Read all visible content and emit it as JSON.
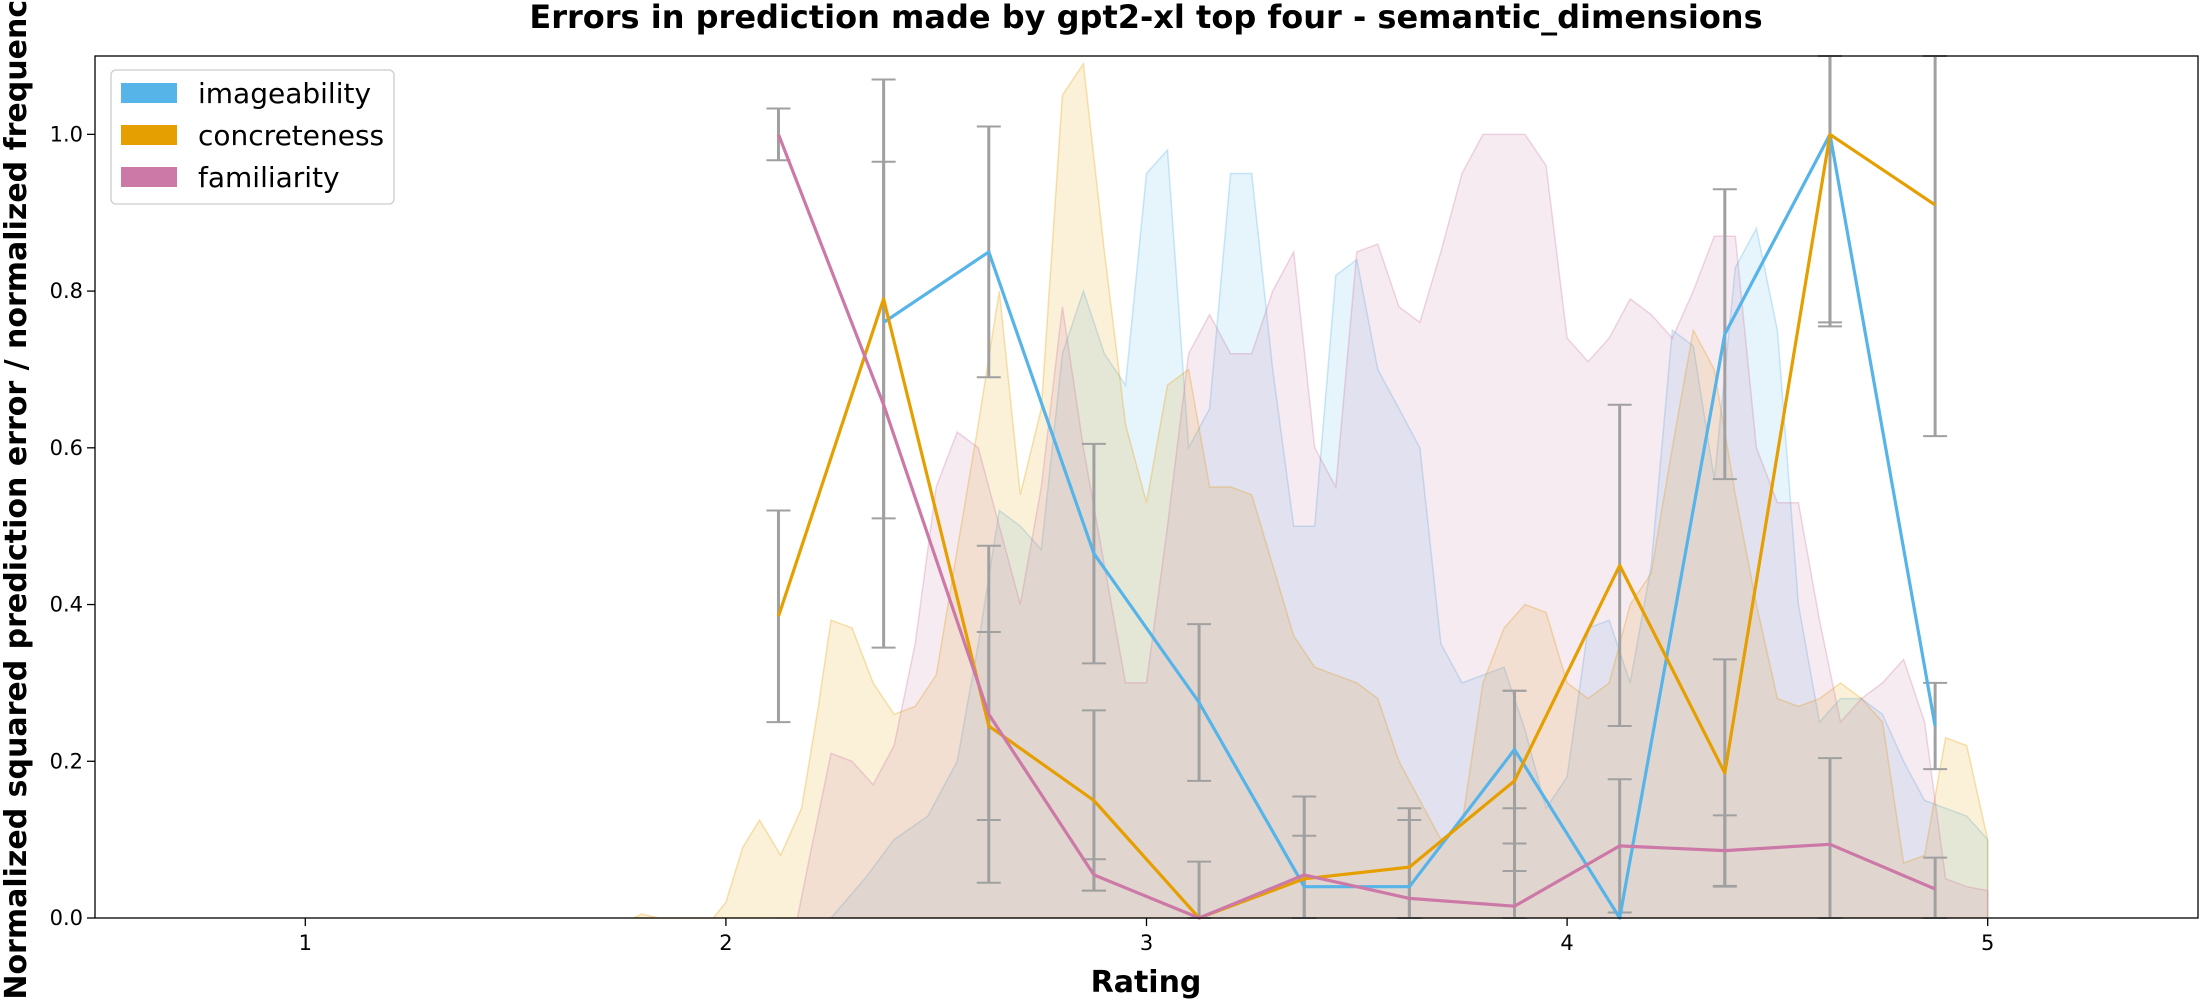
{
  "chart_data": {
    "type": "line",
    "title": "Errors in prediction made by gpt2-xl top four - semantic_dimensions",
    "xlabel": "Rating",
    "ylabel": "Normalized squared prediction error / normalized frequency",
    "xlim": [
      0.5,
      5.5
    ],
    "ylim": [
      0.0,
      1.1
    ],
    "xticks": [
      "1",
      "2",
      "3",
      "4",
      "5"
    ],
    "yticks": [
      "0.0",
      "0.2",
      "0.4",
      "0.6",
      "0.8",
      "1.0"
    ],
    "grid": false,
    "legend_position": "top-left",
    "colors": {
      "imageability": "#56b4e9",
      "concreteness": "#e69f00",
      "familiarity": "#cc79a7",
      "errorbar": "#a0a0a0"
    },
    "series": [
      {
        "name": "imageability",
        "x": [
          2.375,
          2.625,
          2.875,
          3.125,
          3.375,
          3.625,
          3.875,
          4.125,
          4.375,
          4.625,
          4.875
        ],
        "y": [
          0.76,
          0.85,
          0.465,
          0.275,
          0.04,
          0.04,
          0.215,
          0.0,
          0.745,
          1.0,
          0.245
        ],
        "err": [
          0.0,
          0.16,
          0.14,
          0.1,
          0.0,
          0.0,
          0.075,
          0.0,
          0.185,
          0.24,
          0.055
        ]
      },
      {
        "name": "concreteness",
        "x": [
          2.125,
          2.375,
          2.625,
          2.875,
          3.125,
          3.375,
          3.625,
          3.875,
          4.125,
          4.375,
          4.625,
          4.875
        ],
        "y": [
          0.385,
          0.79,
          0.245,
          0.15,
          0.0,
          0.05,
          0.065,
          0.175,
          0.45,
          0.185,
          1.0,
          0.91
        ],
        "err": [
          0.135,
          0.28,
          0.12,
          0.115,
          0.0,
          0.055,
          0.075,
          0.115,
          0.205,
          0.145,
          0.245,
          0.295
        ]
      },
      {
        "name": "familiarity",
        "x": [
          2.125,
          2.375,
          2.625,
          2.875,
          3.125,
          3.375,
          3.625,
          3.875,
          4.125,
          4.375,
          4.625,
          4.875
        ],
        "y": [
          1.0,
          0.655,
          0.26,
          0.055,
          0.0,
          0.055,
          0.025,
          0.015,
          0.092,
          0.086,
          0.094,
          0.037
        ],
        "err": [
          0.033,
          0.31,
          0.215,
          0.02,
          0.072,
          0.1,
          0.1,
          0.08,
          0.085,
          0.045,
          0.11,
          0.04
        ]
      }
    ],
    "density": [
      {
        "name": "imageability",
        "x": [
          2.25,
          2.33,
          2.4,
          2.48,
          2.55,
          2.6,
          2.65,
          2.7,
          2.75,
          2.8,
          2.85,
          2.9,
          2.95,
          3.0,
          3.05,
          3.1,
          3.15,
          3.2,
          3.25,
          3.3,
          3.35,
          3.4,
          3.45,
          3.5,
          3.55,
          3.6,
          3.65,
          3.7,
          3.75,
          3.8,
          3.85,
          3.9,
          3.95,
          4.0,
          4.05,
          4.1,
          4.15,
          4.2,
          4.25,
          4.3,
          4.35,
          4.4,
          4.45,
          4.5,
          4.55,
          4.6,
          4.65,
          4.7,
          4.75,
          4.8,
          4.85,
          4.9,
          4.95,
          5.0
        ],
        "y": [
          0.0,
          0.05,
          0.1,
          0.13,
          0.2,
          0.35,
          0.52,
          0.5,
          0.47,
          0.72,
          0.8,
          0.72,
          0.68,
          0.95,
          0.98,
          0.6,
          0.65,
          0.95,
          0.95,
          0.7,
          0.5,
          0.5,
          0.82,
          0.84,
          0.7,
          0.65,
          0.6,
          0.35,
          0.3,
          0.31,
          0.32,
          0.24,
          0.14,
          0.18,
          0.37,
          0.38,
          0.3,
          0.45,
          0.75,
          0.73,
          0.56,
          0.83,
          0.88,
          0.75,
          0.4,
          0.25,
          0.28,
          0.28,
          0.26,
          0.2,
          0.15,
          0.14,
          0.13,
          0.1
        ]
      },
      {
        "name": "concreteness",
        "x": [
          1.78,
          1.8,
          1.84,
          1.9,
          1.97,
          2.0,
          2.04,
          2.08,
          2.13,
          2.18,
          2.22,
          2.25,
          2.3,
          2.35,
          2.4,
          2.45,
          2.5,
          2.55,
          2.6,
          2.65,
          2.7,
          2.75,
          2.8,
          2.85,
          2.9,
          2.95,
          3.0,
          3.05,
          3.1,
          3.15,
          3.2,
          3.25,
          3.3,
          3.35,
          3.4,
          3.45,
          3.5,
          3.55,
          3.6,
          3.65,
          3.7,
          3.75,
          3.8,
          3.85,
          3.9,
          3.95,
          4.0,
          4.05,
          4.1,
          4.15,
          4.2,
          4.25,
          4.3,
          4.35,
          4.4,
          4.45,
          4.5,
          4.55,
          4.6,
          4.65,
          4.7,
          4.75,
          4.8,
          4.85,
          4.9,
          4.95,
          5.0
        ],
        "y": [
          0.0,
          0.005,
          0.0,
          0.0,
          0.0,
          0.02,
          0.09,
          0.125,
          0.08,
          0.14,
          0.27,
          0.38,
          0.37,
          0.3,
          0.26,
          0.27,
          0.31,
          0.47,
          0.63,
          0.8,
          0.54,
          0.65,
          1.05,
          1.09,
          0.85,
          0.63,
          0.53,
          0.68,
          0.7,
          0.55,
          0.55,
          0.54,
          0.45,
          0.36,
          0.32,
          0.31,
          0.3,
          0.28,
          0.2,
          0.15,
          0.1,
          0.12,
          0.3,
          0.37,
          0.4,
          0.39,
          0.3,
          0.28,
          0.3,
          0.4,
          0.44,
          0.6,
          0.75,
          0.7,
          0.54,
          0.4,
          0.28,
          0.27,
          0.28,
          0.3,
          0.28,
          0.25,
          0.07,
          0.08,
          0.23,
          0.22,
          0.1
        ]
      },
      {
        "name": "familiarity",
        "x": [
          2.12,
          2.17,
          2.2,
          2.25,
          2.3,
          2.35,
          2.4,
          2.45,
          2.5,
          2.55,
          2.6,
          2.65,
          2.7,
          2.75,
          2.8,
          2.85,
          2.9,
          2.95,
          3.0,
          3.05,
          3.1,
          3.15,
          3.2,
          3.25,
          3.3,
          3.35,
          3.4,
          3.45,
          3.5,
          3.55,
          3.6,
          3.65,
          3.7,
          3.75,
          3.8,
          3.85,
          3.9,
          3.95,
          4.0,
          4.05,
          4.1,
          4.15,
          4.2,
          4.25,
          4.3,
          4.35,
          4.4,
          4.45,
          4.5,
          4.55,
          4.6,
          4.65,
          4.7,
          4.75,
          4.8,
          4.85,
          4.9,
          4.95,
          5.0
        ],
        "y": [
          0.0,
          0.0,
          0.08,
          0.21,
          0.2,
          0.17,
          0.22,
          0.35,
          0.55,
          0.62,
          0.6,
          0.5,
          0.4,
          0.55,
          0.78,
          0.6,
          0.45,
          0.3,
          0.3,
          0.5,
          0.72,
          0.77,
          0.72,
          0.72,
          0.8,
          0.85,
          0.6,
          0.55,
          0.85,
          0.86,
          0.78,
          0.76,
          0.85,
          0.95,
          1.0,
          1.0,
          1.0,
          0.96,
          0.74,
          0.71,
          0.74,
          0.79,
          0.77,
          0.74,
          0.8,
          0.87,
          0.87,
          0.6,
          0.53,
          0.53,
          0.38,
          0.25,
          0.28,
          0.3,
          0.33,
          0.25,
          0.05,
          0.04,
          0.035
        ]
      }
    ]
  }
}
